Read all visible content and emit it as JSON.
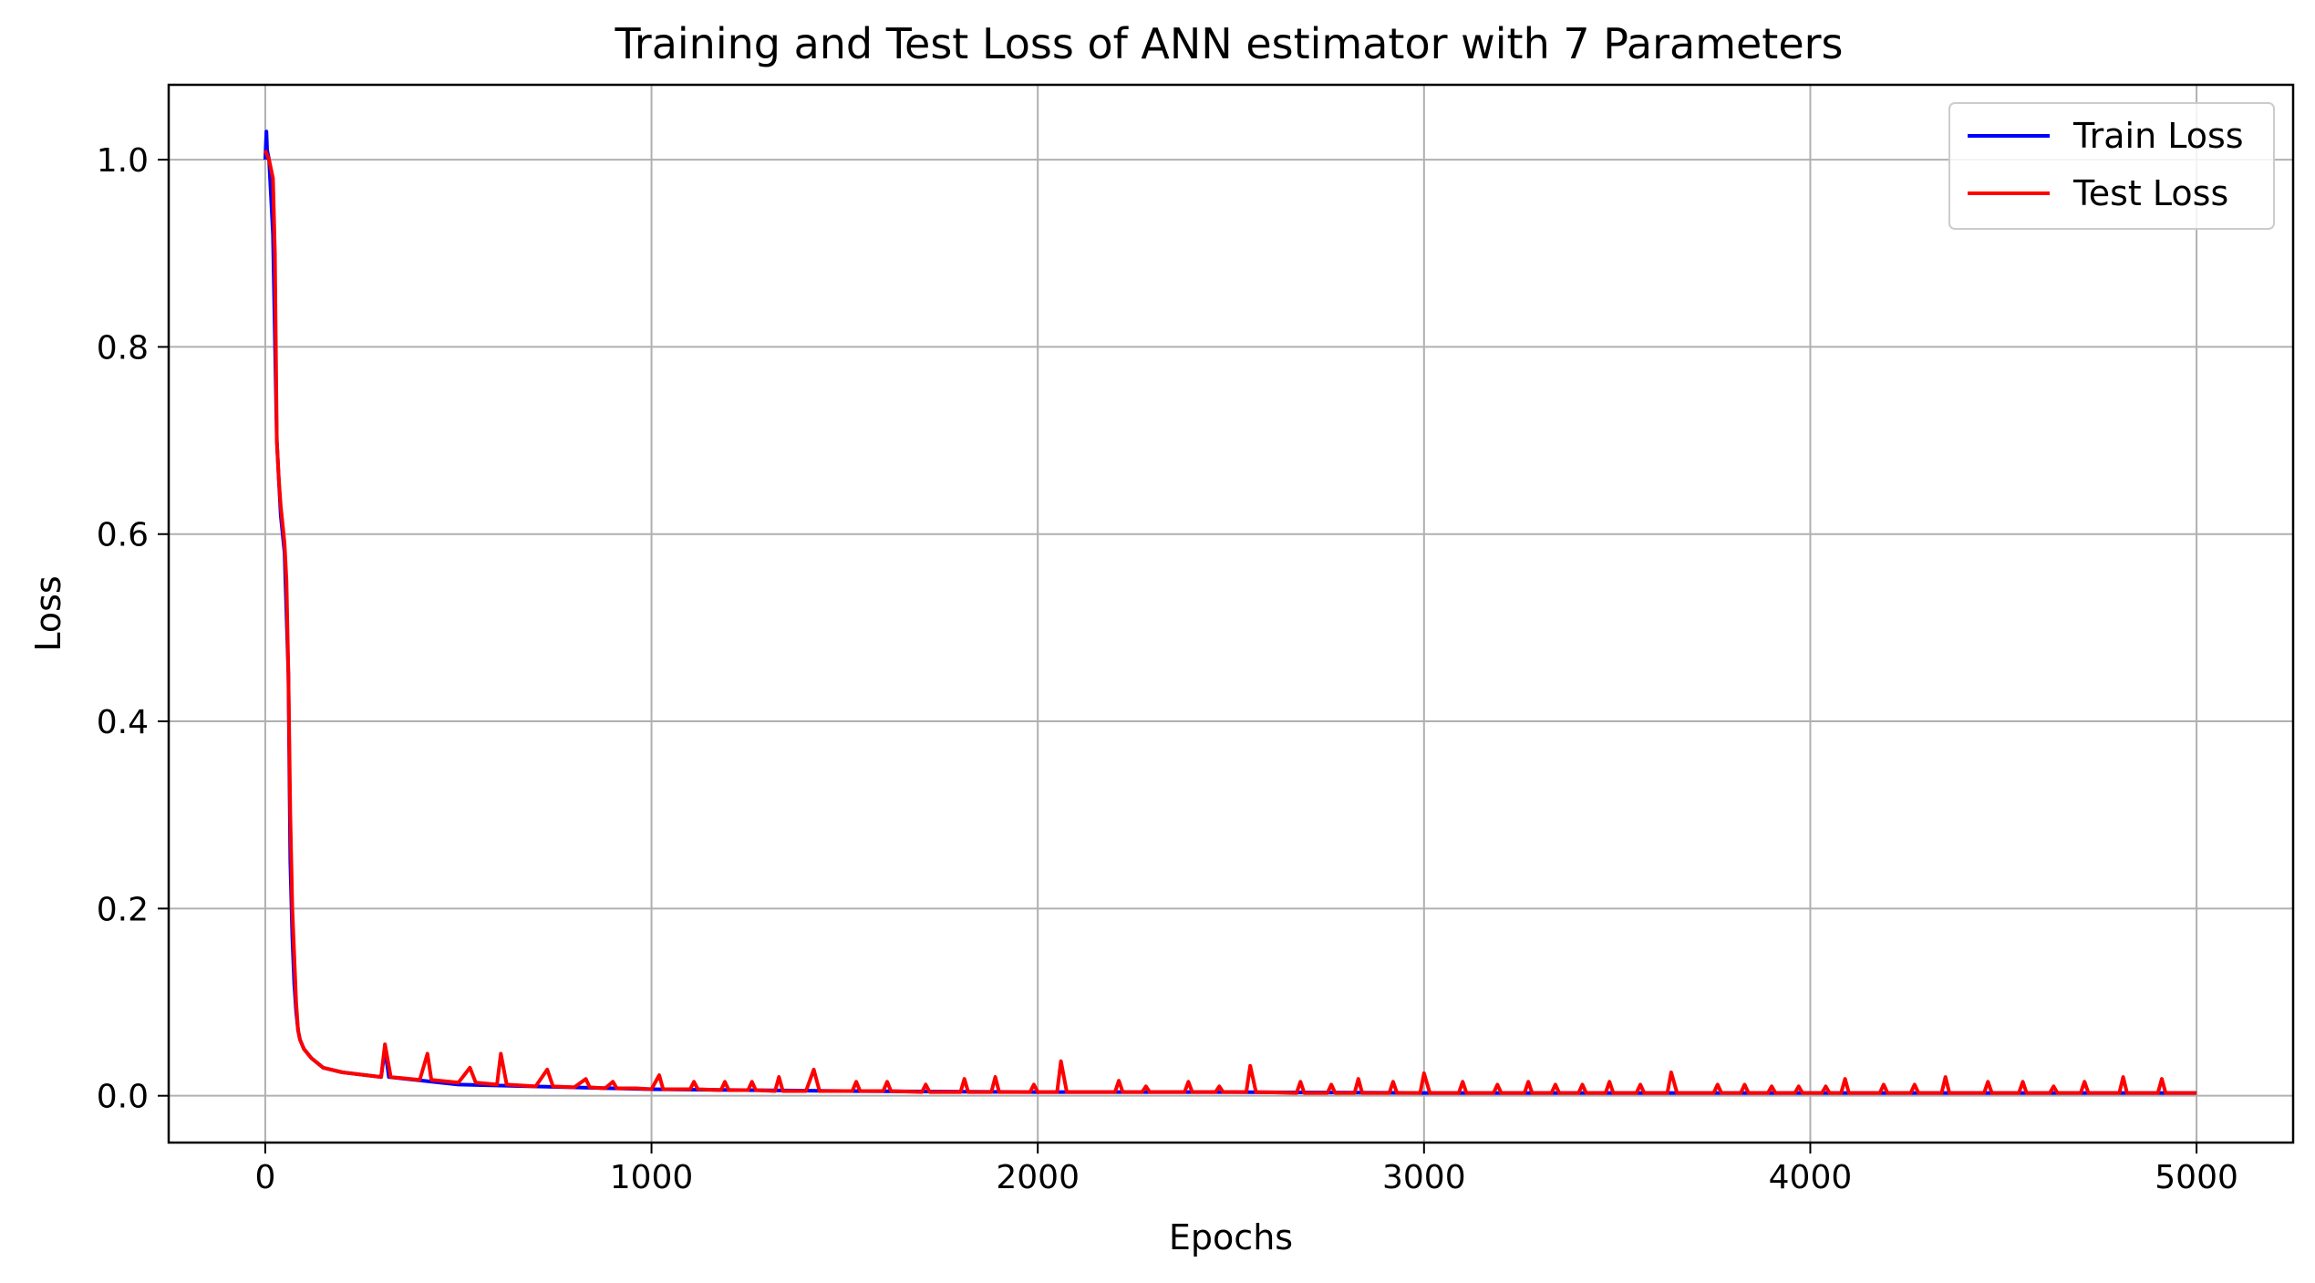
{
  "chart_data": {
    "type": "line",
    "title": "Training and Test Loss of ANN estimator with 7 Parameters",
    "xlabel": "Epochs",
    "ylabel": "Loss",
    "xlim": [
      -250,
      5250
    ],
    "ylim": [
      -0.05,
      1.08
    ],
    "xticks": [
      0,
      1000,
      2000,
      3000,
      4000,
      5000
    ],
    "xtick_labels": [
      "0",
      "1000",
      "2000",
      "3000",
      "4000",
      "5000"
    ],
    "yticks": [
      0.0,
      0.2,
      0.4,
      0.6,
      0.8,
      1.0
    ],
    "ytick_labels": [
      "0.0",
      "0.2",
      "0.4",
      "0.6",
      "0.8",
      "1.0"
    ],
    "grid": true,
    "legend_position": "top-right",
    "series": [
      {
        "name": "Train Loss",
        "color": "#0000ff",
        "x": [
          0,
          3,
          5,
          10,
          20,
          30,
          35,
          40,
          50,
          60,
          65,
          70,
          75,
          80,
          85,
          90,
          100,
          120,
          150,
          200,
          300,
          310,
          320,
          500,
          1000,
          1500,
          2000,
          2500,
          3000,
          3500,
          4000,
          4500,
          5000
        ],
        "y": [
          1.0,
          1.03,
          1.01,
          1.0,
          0.92,
          0.7,
          0.66,
          0.62,
          0.58,
          0.45,
          0.25,
          0.17,
          0.12,
          0.09,
          0.07,
          0.06,
          0.05,
          0.04,
          0.03,
          0.025,
          0.02,
          0.05,
          0.02,
          0.012,
          0.007,
          0.005,
          0.004,
          0.004,
          0.003,
          0.003,
          0.003,
          0.003,
          0.003
        ]
      },
      {
        "name": "Test Loss",
        "color": "#ff0000",
        "x": [
          0,
          10,
          20,
          25,
          30,
          35,
          40,
          50,
          55,
          60,
          65,
          70,
          75,
          80,
          85,
          90,
          100,
          120,
          150,
          200,
          300,
          310,
          325,
          400,
          420,
          430,
          500,
          530,
          545,
          600,
          610,
          625,
          700,
          730,
          745,
          800,
          830,
          840,
          880,
          900,
          910,
          960,
          1000,
          1020,
          1030,
          1100,
          1110,
          1120,
          1180,
          1190,
          1200,
          1250,
          1260,
          1270,
          1320,
          1330,
          1340,
          1400,
          1420,
          1435,
          1520,
          1530,
          1540,
          1600,
          1610,
          1620,
          1700,
          1710,
          1720,
          1800,
          1810,
          1820,
          1880,
          1890,
          1900,
          1980,
          1990,
          2000,
          2050,
          2060,
          2075,
          2200,
          2210,
          2220,
          2270,
          2280,
          2290,
          2380,
          2390,
          2400,
          2460,
          2470,
          2480,
          2540,
          2550,
          2565,
          2670,
          2680,
          2690,
          2750,
          2760,
          2770,
          2820,
          2830,
          2840,
          2910,
          2920,
          2930,
          2990,
          3000,
          3015,
          3090,
          3100,
          3110,
          3180,
          3190,
          3200,
          3260,
          3270,
          3280,
          3330,
          3340,
          3350,
          3400,
          3410,
          3420,
          3470,
          3480,
          3490,
          3550,
          3560,
          3570,
          3630,
          3640,
          3655,
          3750,
          3760,
          3770,
          3820,
          3830,
          3840,
          3890,
          3900,
          3910,
          3960,
          3970,
          3980,
          4030,
          4040,
          4050,
          4080,
          4090,
          4100,
          4180,
          4190,
          4200,
          4260,
          4270,
          4280,
          4340,
          4350,
          4360,
          4450,
          4460,
          4470,
          4540,
          4550,
          4560,
          4620,
          4630,
          4640,
          4700,
          4710,
          4720,
          4800,
          4810,
          4820,
          4900,
          4910,
          4920,
          5000
        ],
        "y": [
          1.01,
          1.0,
          0.98,
          0.9,
          0.7,
          0.66,
          0.63,
          0.59,
          0.55,
          0.45,
          0.3,
          0.2,
          0.15,
          0.1,
          0.07,
          0.06,
          0.05,
          0.04,
          0.03,
          0.025,
          0.02,
          0.055,
          0.02,
          0.017,
          0.045,
          0.017,
          0.014,
          0.03,
          0.014,
          0.012,
          0.045,
          0.012,
          0.01,
          0.028,
          0.01,
          0.009,
          0.018,
          0.009,
          0.008,
          0.015,
          0.008,
          0.008,
          0.007,
          0.022,
          0.007,
          0.007,
          0.015,
          0.007,
          0.006,
          0.015,
          0.006,
          0.006,
          0.015,
          0.006,
          0.005,
          0.02,
          0.005,
          0.005,
          0.028,
          0.005,
          0.005,
          0.015,
          0.005,
          0.005,
          0.015,
          0.005,
          0.004,
          0.012,
          0.004,
          0.004,
          0.018,
          0.004,
          0.004,
          0.02,
          0.004,
          0.004,
          0.012,
          0.004,
          0.004,
          0.037,
          0.004,
          0.004,
          0.016,
          0.004,
          0.004,
          0.01,
          0.004,
          0.004,
          0.015,
          0.004,
          0.004,
          0.01,
          0.004,
          0.004,
          0.032,
          0.004,
          0.003,
          0.015,
          0.003,
          0.003,
          0.012,
          0.003,
          0.003,
          0.018,
          0.003,
          0.003,
          0.015,
          0.003,
          0.003,
          0.024,
          0.003,
          0.003,
          0.015,
          0.003,
          0.003,
          0.012,
          0.003,
          0.003,
          0.015,
          0.003,
          0.003,
          0.012,
          0.003,
          0.003,
          0.012,
          0.003,
          0.003,
          0.015,
          0.003,
          0.003,
          0.012,
          0.003,
          0.003,
          0.025,
          0.003,
          0.003,
          0.012,
          0.003,
          0.003,
          0.012,
          0.003,
          0.003,
          0.01,
          0.003,
          0.003,
          0.01,
          0.003,
          0.003,
          0.01,
          0.003,
          0.003,
          0.018,
          0.003,
          0.003,
          0.012,
          0.003,
          0.003,
          0.012,
          0.003,
          0.003,
          0.02,
          0.003,
          0.003,
          0.015,
          0.003,
          0.003,
          0.015,
          0.003,
          0.003,
          0.01,
          0.003,
          0.003,
          0.015,
          0.003,
          0.003,
          0.02,
          0.003,
          0.003,
          0.018,
          0.003,
          0.003
        ]
      }
    ]
  }
}
